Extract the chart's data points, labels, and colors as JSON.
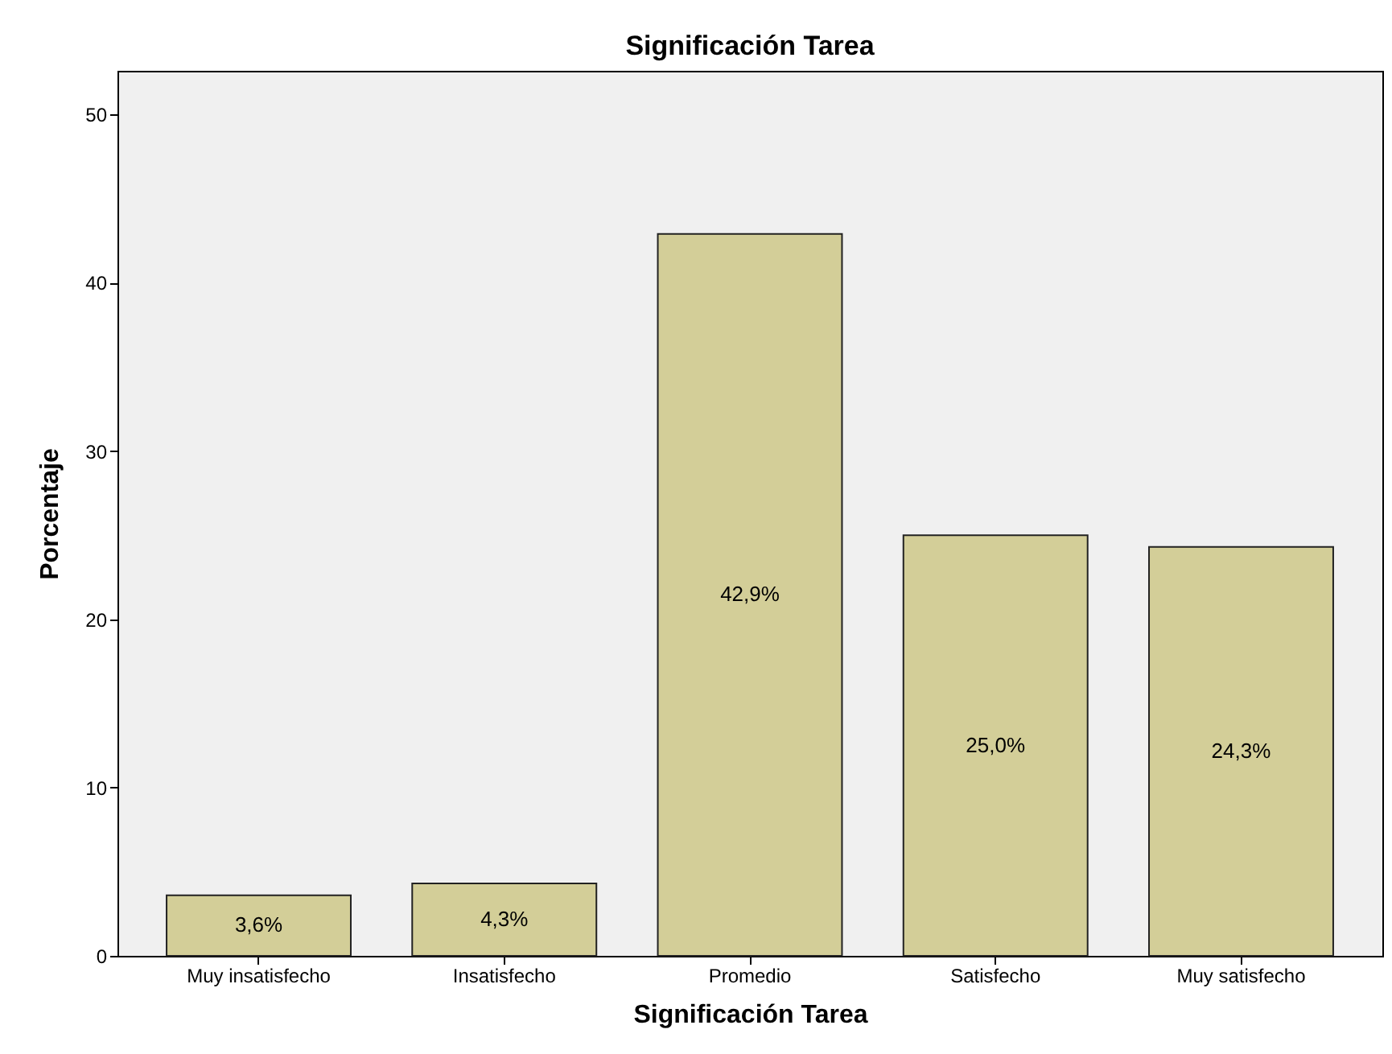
{
  "chart_data": {
    "type": "bar",
    "title": "Significación Tarea",
    "xlabel": "Significación Tarea",
    "ylabel": "Porcentaje",
    "categories": [
      "Muy insatisfecho",
      "Insatisfecho",
      "Promedio",
      "Satisfecho",
      "Muy satisfecho"
    ],
    "values": [
      3.6,
      4.3,
      42.9,
      25.0,
      24.3
    ],
    "value_labels": [
      "3,6%",
      "4,3%",
      "42,9%",
      "25,0%",
      "24,3%"
    ],
    "color": "#d3ce98",
    "ylim": [
      0,
      52.6
    ],
    "yticks": [
      0,
      10,
      20,
      30,
      40,
      50
    ],
    "grid": false
  }
}
